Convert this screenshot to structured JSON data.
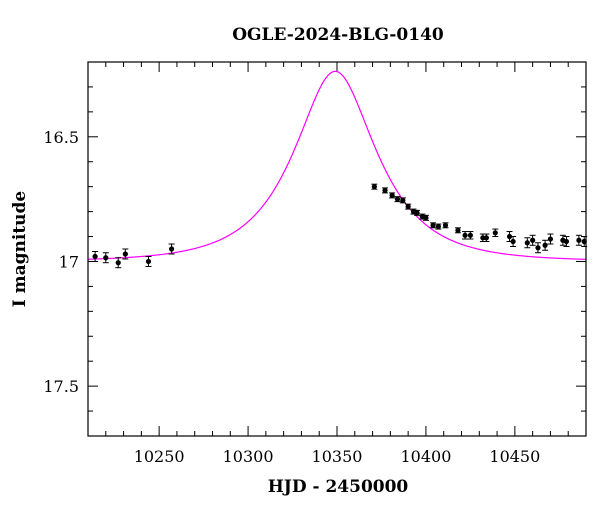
{
  "chart_data": {
    "type": "scatter",
    "title": "OGLE-2024-BLG-0140",
    "xlabel": "HJD - 2450000",
    "ylabel": "I magnitude",
    "xlim": [
      10210,
      10490
    ],
    "ylim": [
      17.7,
      16.2
    ],
    "y_inverted": true,
    "x_major_ticks": [
      10250,
      10300,
      10350,
      10400,
      10450
    ],
    "x_tick_labels": [
      "10250",
      "10300",
      "10350",
      "10400",
      "10450"
    ],
    "y_major_ticks": [
      16.5,
      17,
      17.5
    ],
    "y_tick_labels": [
      "16.5",
      "17",
      "17.5"
    ],
    "grid": false,
    "colors": {
      "points": "#000000",
      "model": "#ff00ff"
    },
    "series": [
      {
        "kind": "observations",
        "points": [
          {
            "x": 10214,
            "y": 16.98,
            "err": 0.02
          },
          {
            "x": 10220,
            "y": 16.985,
            "err": 0.02
          },
          {
            "x": 10227,
            "y": 17.005,
            "err": 0.02
          },
          {
            "x": 10231,
            "y": 16.97,
            "err": 0.02
          },
          {
            "x": 10244,
            "y": 17.0,
            "err": 0.02
          },
          {
            "x": 10257,
            "y": 16.95,
            "err": 0.02
          },
          {
            "x": 10371,
            "y": 16.7,
            "err": 0.01
          },
          {
            "x": 10377,
            "y": 16.715,
            "err": 0.01
          },
          {
            "x": 10381,
            "y": 16.735,
            "err": 0.01
          },
          {
            "x": 10384,
            "y": 16.75,
            "err": 0.01
          },
          {
            "x": 10387,
            "y": 16.755,
            "err": 0.01
          },
          {
            "x": 10390,
            "y": 16.78,
            "err": 0.01
          },
          {
            "x": 10393,
            "y": 16.8,
            "err": 0.01
          },
          {
            "x": 10395,
            "y": 16.805,
            "err": 0.01
          },
          {
            "x": 10398,
            "y": 16.82,
            "err": 0.01
          },
          {
            "x": 10400,
            "y": 16.825,
            "err": 0.01
          },
          {
            "x": 10404,
            "y": 16.855,
            "err": 0.01
          },
          {
            "x": 10407,
            "y": 16.86,
            "err": 0.01
          },
          {
            "x": 10411,
            "y": 16.855,
            "err": 0.01
          },
          {
            "x": 10418,
            "y": 16.875,
            "err": 0.01
          },
          {
            "x": 10422,
            "y": 16.895,
            "err": 0.015
          },
          {
            "x": 10425,
            "y": 16.895,
            "err": 0.015
          },
          {
            "x": 10432,
            "y": 16.905,
            "err": 0.015
          },
          {
            "x": 10434,
            "y": 16.905,
            "err": 0.015
          },
          {
            "x": 10439,
            "y": 16.885,
            "err": 0.015
          },
          {
            "x": 10447,
            "y": 16.9,
            "err": 0.02
          },
          {
            "x": 10449,
            "y": 16.92,
            "err": 0.02
          },
          {
            "x": 10457,
            "y": 16.925,
            "err": 0.02
          },
          {
            "x": 10460,
            "y": 16.915,
            "err": 0.02
          },
          {
            "x": 10463,
            "y": 16.945,
            "err": 0.02
          },
          {
            "x": 10467,
            "y": 16.935,
            "err": 0.02
          },
          {
            "x": 10470,
            "y": 16.91,
            "err": 0.02
          },
          {
            "x": 10477,
            "y": 16.915,
            "err": 0.02
          },
          {
            "x": 10479,
            "y": 16.92,
            "err": 0.02
          },
          {
            "x": 10486,
            "y": 16.915,
            "err": 0.02
          },
          {
            "x": 10489,
            "y": 16.92,
            "err": 0.02
          }
        ]
      },
      {
        "kind": "model",
        "model": {
          "type": "paczynski",
          "t0": 10349,
          "tE": 38,
          "u0": 0.55,
          "baseline": 17.0
        }
      }
    ]
  }
}
